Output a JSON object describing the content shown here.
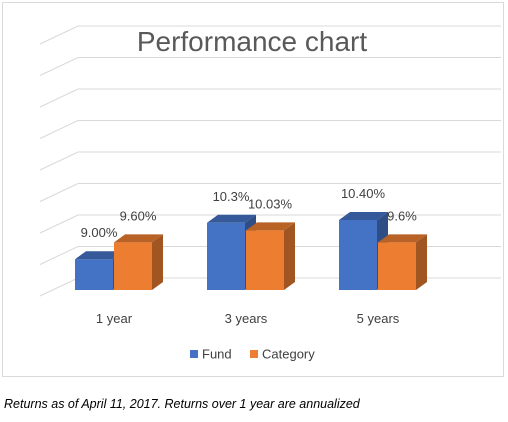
{
  "chart_data": {
    "type": "bar",
    "title": "Performance chart",
    "xlabel": "",
    "ylabel": "",
    "categories": [
      "1 year",
      "3 years",
      "5 years"
    ],
    "series": [
      {
        "name": "Fund",
        "values": [
          9.0,
          10.3,
          10.4
        ],
        "labels": [
          "9.00%",
          "10.3%",
          "10.40%"
        ],
        "color": "#4472c4"
      },
      {
        "name": "Category",
        "values": [
          9.6,
          10.03,
          9.6
        ],
        "labels": [
          "9.60%",
          "10.03%",
          "9.6%"
        ],
        "color": "#ed7d31"
      }
    ],
    "ylim": [
      7.9,
      10.9
    ],
    "grid": true,
    "three_d": true,
    "legend": "bottom"
  },
  "footnote": "Returns as of April 11, 2017. Returns over 1 year are annualized"
}
